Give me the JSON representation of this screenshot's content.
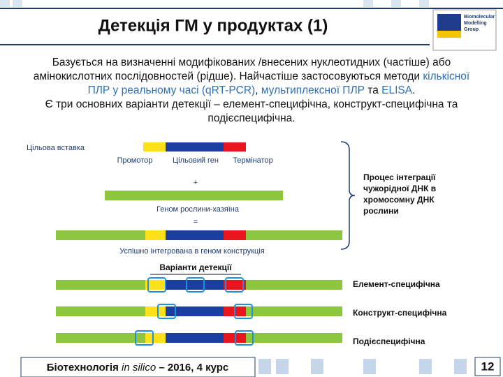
{
  "header": {
    "title": "Детекція ГМ у продуктах (1)",
    "logo": [
      "Biomolecular",
      "Modelling",
      "Group"
    ]
  },
  "body": {
    "paragraphs": [
      [
        {
          "text": "Базується на визначенні модифікованих /внесених нуклеотидних (частіше) або амінокислотних послідовностей (рідше). Найчастіше застосовуються методи "
        },
        {
          "text": "кількісної ПЛР у реальному часі (qRT-PCR)",
          "emphasis": true
        },
        {
          "text": ", "
        },
        {
          "text": "мультиплексної ПЛР",
          "emphasis": true
        },
        {
          "text": " та "
        },
        {
          "text": "ELISA",
          "emphasis": true
        },
        {
          "text": "."
        }
      ],
      [
        {
          "text": "Є три основних варіанти детекції – елемент-специфічна, конструкт-специфічна та подієспецифічна."
        }
      ]
    ]
  },
  "diagram": {
    "insert_label": "Цільова вставка",
    "elements": [
      "Промотор",
      "Цільовий ген",
      "Термінатор"
    ],
    "plus": "+",
    "host_label": "Геном рослини-хазяїна",
    "equals": "=",
    "result_label": "Успішно інтегрована в геном конструкція",
    "process_note": [
      "Процес інтеграції",
      "чужорідної ДНК в",
      "хромосомну ДНК",
      "рослини"
    ],
    "variants_title": "Варіанти детекції",
    "variants": [
      "Елемент-специфічна",
      "Конструкт-специфічна",
      "Подієспецифічна"
    ]
  },
  "footer": {
    "course": [
      "Біотехнологія ",
      "in silico",
      " – 2016, 4 курс"
    ],
    "page": "12"
  }
}
